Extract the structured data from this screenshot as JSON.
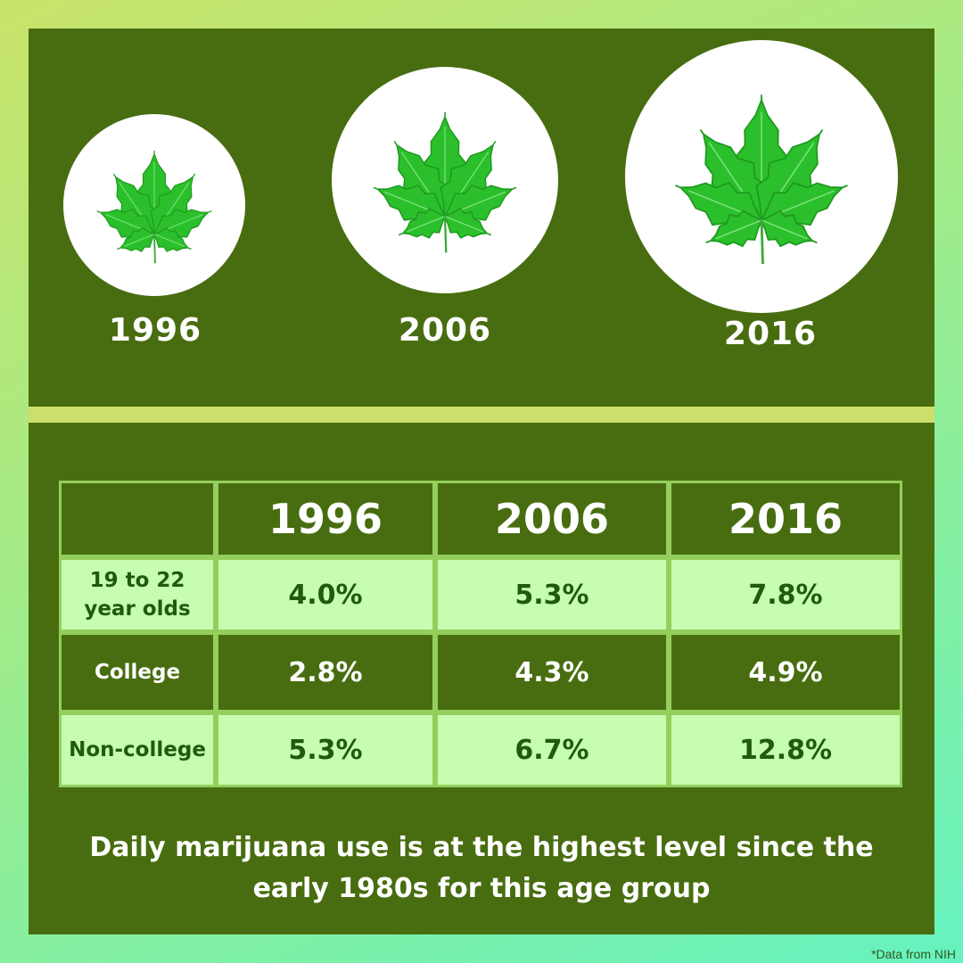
{
  "colors": {
    "panel": "#486d10",
    "divider": "#cddf6a",
    "light_row": "#c6fdb0",
    "light_text": "#1e5b0d",
    "leaf": "#2bc02b",
    "circle": "#ffffff"
  },
  "icons": [
    "cannabis-leaf-icon"
  ],
  "leaf_years": [
    "1996",
    "2006",
    "2016"
  ],
  "chart_data": {
    "type": "table",
    "columns": [
      "",
      "1996",
      "2006",
      "2016"
    ],
    "rows": [
      {
        "label": "19 to 22\nyear olds",
        "values": [
          "4.0%",
          "5.3%",
          "7.8%"
        ]
      },
      {
        "label": "College",
        "values": [
          "2.8%",
          "4.3%",
          "4.9%"
        ]
      },
      {
        "label": "Non-college",
        "values": [
          "5.3%",
          "6.7%",
          "12.8%"
        ]
      }
    ],
    "numeric": {
      "x": [
        1996,
        2006,
        2016
      ],
      "series": [
        {
          "name": "19 to 22 year olds",
          "values": [
            4.0,
            5.3,
            7.8
          ]
        },
        {
          "name": "College",
          "values": [
            2.8,
            4.3,
            4.9
          ]
        },
        {
          "name": "Non-college",
          "values": [
            5.3,
            6.7,
            12.8
          ]
        }
      ]
    }
  },
  "caption": "Daily marijuana use is at the highest level since the early 1980s for this age group",
  "source": "*Data from NIH"
}
